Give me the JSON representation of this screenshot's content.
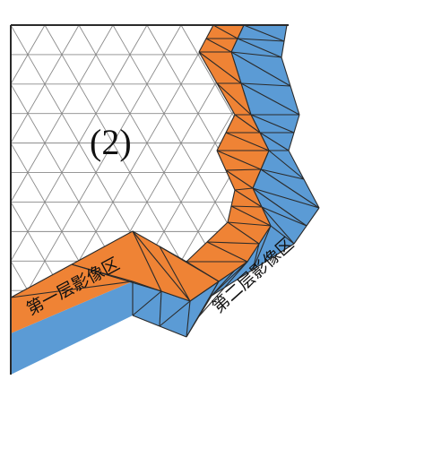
{
  "diagram": {
    "region_label": "(2)",
    "zone1_label": "第一层影像区",
    "zone2_label": "第二层影像区",
    "colors": {
      "background": "#ffffff",
      "mesh_lines": "#8a8a8a",
      "mesh_border": "#2a2a2a",
      "zone1_fill": "#ef8335",
      "zone2_fill": "#5b9bd5"
    }
  }
}
